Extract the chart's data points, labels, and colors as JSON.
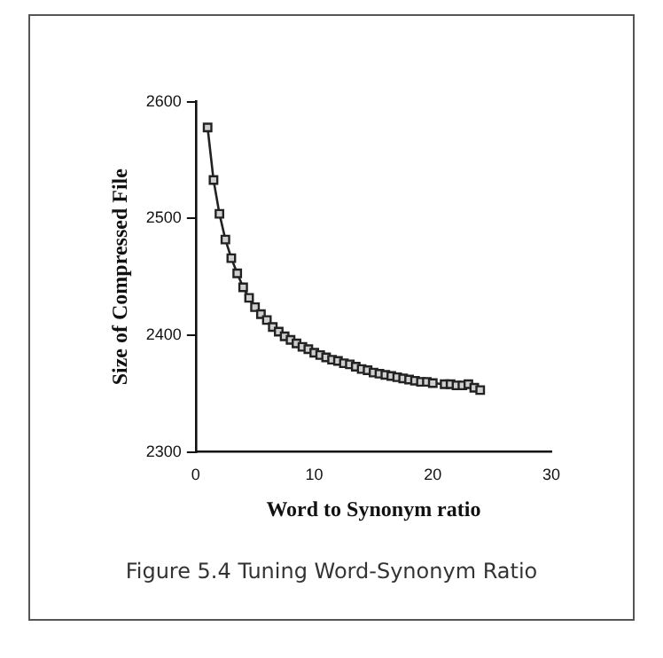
{
  "chart_data": {
    "type": "line",
    "xlabel": "Word to Synonym ratio",
    "ylabel": "Size of Compressed File",
    "annotations": [
      "Figure 5.4 Tuning Word-Synonym Ratio"
    ],
    "x": [
      1,
      1.5,
      2,
      2.5,
      3,
      3.5,
      4,
      4.5,
      5,
      5.5,
      6,
      6.5,
      7,
      7.5,
      8,
      8.5,
      9,
      9.5,
      10,
      10.5,
      11,
      11.5,
      12,
      12.5,
      13,
      13.5,
      14,
      14.5,
      15,
      15.5,
      16,
      16.5,
      17,
      17.5,
      18,
      18.5,
      19,
      19.5,
      20,
      21,
      21.5,
      22,
      22.5,
      23,
      23.5,
      24
    ],
    "series": [
      {
        "color": "#222222",
        "values": [
          2578,
          2533,
          2504,
          2482,
          2466,
          2453,
          2441,
          2432,
          2424,
          2418,
          2413,
          2407,
          2403,
          2399,
          2396,
          2393,
          2390,
          2388,
          2385,
          2383,
          2381,
          2379,
          2378,
          2376,
          2375,
          2373,
          2371,
          2370,
          2368,
          2367,
          2366,
          2365,
          2364,
          2363,
          2362,
          2361,
          2360,
          2360,
          2359,
          2358,
          2358,
          2357,
          2357,
          2358,
          2355,
          2353
        ]
      }
    ],
    "xlim": [
      0,
      30
    ],
    "xticks": [
      0,
      10,
      20,
      30
    ],
    "ylim": [
      2300,
      2600
    ],
    "yticks": [
      2300,
      2400,
      2500,
      2600
    ],
    "grid": false,
    "legend": false,
    "marker": "square",
    "line_style": "solid"
  }
}
